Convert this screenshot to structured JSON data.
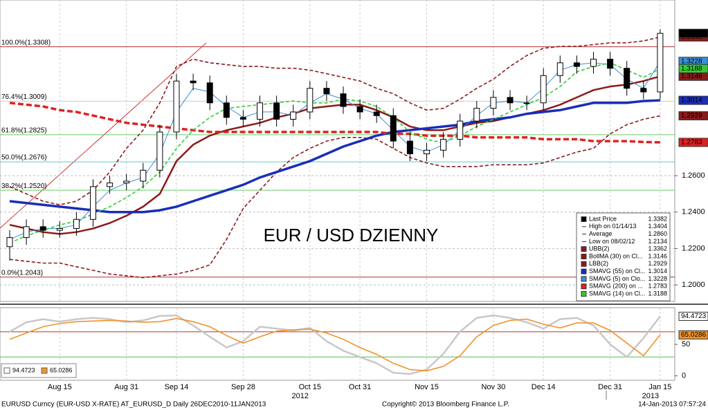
{
  "chart_data": [
    {
      "type": "candlestick",
      "title": "EUR / USD DZIENNY",
      "title_color": "#cc1111",
      "categories": [
        null,
        null,
        null,
        "Aug 15",
        null,
        null,
        null,
        "Aug 31",
        null,
        null,
        "Sep 14",
        null,
        null,
        null,
        "Sep 28",
        null,
        null,
        null,
        "Oct 15",
        null,
        null,
        "Oct 31",
        null,
        null,
        null,
        "Nov 15",
        null,
        null,
        null,
        "Nov 30",
        null,
        null,
        "Dec 14",
        null,
        null,
        null,
        "Dec 31",
        null,
        null,
        "Jan 15"
      ],
      "year_labels": [
        {
          "text": "2012",
          "category": "Oct 15"
        },
        {
          "text": "2013",
          "category": "Jan 15"
        }
      ],
      "ohlc": {
        "name": "Last Price",
        "up_color": "#ffffff",
        "down_color": "#000000",
        "open": [
          1.221,
          1.226,
          1.232,
          1.23,
          1.231,
          1.236,
          1.254,
          1.256,
          1.257,
          1.263,
          1.284,
          1.312,
          1.311,
          1.3,
          1.292,
          1.291,
          1.3,
          1.291,
          1.295,
          1.308,
          1.305,
          1.298,
          1.295,
          1.293,
          1.279,
          1.272,
          1.274,
          1.28,
          1.29,
          1.297,
          1.303,
          1.3,
          1.3,
          1.315,
          1.322,
          1.32,
          1.324,
          1.319,
          1.308,
          1.306
        ],
        "high": [
          1.23,
          1.236,
          1.236,
          1.235,
          1.24,
          1.258,
          1.26,
          1.261,
          1.267,
          1.288,
          1.316,
          1.316,
          1.315,
          1.304,
          1.296,
          1.304,
          1.304,
          1.299,
          1.312,
          1.312,
          1.309,
          1.302,
          1.299,
          1.297,
          1.283,
          1.278,
          1.284,
          1.294,
          1.301,
          1.307,
          1.307,
          1.304,
          1.319,
          1.326,
          1.326,
          1.328,
          1.328,
          1.323,
          1.312,
          1.3404
        ],
        "low": [
          1.2134,
          1.222,
          1.226,
          1.226,
          1.227,
          1.232,
          1.25,
          1.252,
          1.253,
          1.259,
          1.28,
          1.307,
          1.296,
          1.288,
          1.287,
          1.287,
          1.287,
          1.287,
          1.291,
          1.301,
          1.294,
          1.291,
          1.289,
          1.275,
          1.268,
          1.268,
          1.27,
          1.276,
          1.286,
          1.293,
          1.296,
          1.296,
          1.296,
          1.311,
          1.316,
          1.316,
          1.315,
          1.304,
          1.302,
          1.302
        ],
        "close": [
          1.226,
          1.232,
          1.23,
          1.231,
          1.236,
          1.254,
          1.256,
          1.257,
          1.263,
          1.284,
          1.312,
          1.311,
          1.3,
          1.292,
          1.291,
          1.3,
          1.291,
          1.295,
          1.308,
          1.305,
          1.298,
          1.295,
          1.293,
          1.279,
          1.272,
          1.274,
          1.28,
          1.29,
          1.297,
          1.303,
          1.3,
          1.3,
          1.315,
          1.322,
          1.32,
          1.324,
          1.319,
          1.308,
          1.306,
          1.3382
        ]
      },
      "stats": [
        {
          "name": "High on 01/14/13",
          "value": 1.3404
        },
        {
          "name": "Average",
          "value": 1.286,
          "label": "1.2860"
        },
        {
          "name": "Low on 08/02/12",
          "value": 1.2134
        }
      ],
      "series": [
        {
          "name": "UBB(2)",
          "color": "#8b1a1a",
          "style": "dashed",
          "values": [
            1.254,
            1.25,
            1.246,
            1.244,
            1.246,
            1.252,
            1.262,
            1.275,
            1.285,
            1.3,
            1.32,
            1.324,
            1.322,
            1.321,
            1.32,
            1.32,
            1.319,
            1.319,
            1.318,
            1.316,
            1.314,
            1.312,
            1.308,
            1.305,
            1.3,
            1.296,
            1.297,
            1.302,
            1.308,
            1.313,
            1.32,
            1.326,
            1.33,
            1.331,
            1.331,
            1.332,
            1.333,
            1.333,
            1.334,
            1.3362
          ]
        },
        {
          "name": "BollMA (30) on Cl...",
          "color": "#8b1a1a",
          "style": "solid",
          "values": [
            1.233,
            1.231,
            1.229,
            1.228,
            1.229,
            1.231,
            1.234,
            1.238,
            1.243,
            1.25,
            1.268,
            1.277,
            1.282,
            1.285,
            1.287,
            1.289,
            1.292,
            1.294,
            1.297,
            1.298,
            1.299,
            1.299,
            1.296,
            1.292,
            1.287,
            1.285,
            1.285,
            1.287,
            1.289,
            1.29,
            1.292,
            1.294,
            1.296,
            1.299,
            1.303,
            1.307,
            1.309,
            1.31,
            1.312,
            1.3146
          ]
        },
        {
          "name": "LBB(2)",
          "color": "#8b1a1a",
          "style": "dashed",
          "values": [
            1.214,
            1.213,
            1.212,
            1.212,
            1.21,
            1.208,
            1.206,
            1.205,
            1.204,
            1.205,
            1.206,
            1.208,
            1.211,
            1.225,
            1.242,
            1.252,
            1.262,
            1.27,
            1.275,
            1.279,
            1.281,
            1.281,
            1.28,
            1.275,
            1.27,
            1.267,
            1.265,
            1.265,
            1.265,
            1.266,
            1.266,
            1.266,
            1.267,
            1.27,
            1.273,
            1.275,
            1.283,
            1.288,
            1.291,
            1.2929
          ]
        },
        {
          "name": "SMAVG (55) on Cl...",
          "color": "#1a2db8",
          "style": "thick",
          "values": [
            1.246,
            1.245,
            1.244,
            1.243,
            1.242,
            1.241,
            1.24,
            1.24,
            1.24,
            1.241,
            1.243,
            1.246,
            1.249,
            1.252,
            1.255,
            1.259,
            1.262,
            1.265,
            1.268,
            1.272,
            1.276,
            1.279,
            1.282,
            1.284,
            1.285,
            1.286,
            1.287,
            1.288,
            1.29,
            1.291,
            1.292,
            1.294,
            1.295,
            1.296,
            1.298,
            1.3,
            1.3,
            1.3,
            1.301,
            1.3014
          ]
        },
        {
          "name": "SMAVG (5) on Clo...",
          "color": "#3a8fd8",
          "style": "thin",
          "values": [
            1.225,
            1.229,
            1.231,
            1.231,
            1.233,
            1.243,
            1.252,
            1.256,
            1.259,
            1.272,
            1.295,
            1.308,
            1.306,
            1.298,
            1.292,
            1.295,
            1.295,
            1.293,
            1.3,
            1.305,
            1.302,
            1.297,
            1.294,
            1.285,
            1.276,
            1.273,
            1.277,
            1.285,
            1.293,
            1.3,
            1.301,
            1.3,
            1.308,
            1.318,
            1.321,
            1.322,
            1.321,
            1.313,
            1.308,
            1.3228
          ]
        },
        {
          "name": "SMAVG (200) on ...",
          "color": "#e02020",
          "style": "thickdashed",
          "values": [
            1.3,
            1.299,
            1.298,
            1.296,
            1.295,
            1.293,
            1.291,
            1.289,
            1.288,
            1.287,
            1.286,
            1.285,
            1.284,
            1.284,
            1.284,
            1.284,
            1.284,
            1.284,
            1.284,
            1.284,
            1.284,
            1.284,
            1.284,
            1.283,
            1.283,
            1.282,
            1.282,
            1.282,
            1.281,
            1.281,
            1.281,
            1.281,
            1.28,
            1.28,
            1.28,
            1.279,
            1.279,
            1.279,
            1.2785,
            1.2783
          ]
        },
        {
          "name": "SMAVG (14) on Cl...",
          "color": "#33cc33",
          "style": "dashed",
          "values": [
            1.223,
            1.227,
            1.23,
            1.233,
            1.235,
            1.239,
            1.243,
            1.248,
            1.254,
            1.262,
            1.275,
            1.285,
            1.292,
            1.297,
            1.298,
            1.299,
            1.3,
            1.301,
            1.3,
            1.3,
            1.302,
            1.301,
            1.298,
            1.292,
            1.284,
            1.28,
            1.278,
            1.282,
            1.287,
            1.291,
            1.295,
            1.299,
            1.303,
            1.309,
            1.317,
            1.32,
            1.322,
            1.318,
            1.314,
            1.3188
          ]
        }
      ],
      "fib_levels": [
        {
          "label": "100.0%(1.3308)",
          "value": 1.3308,
          "color": "#b03030"
        },
        {
          "label": "76.4%(1.3009)",
          "value": 1.3009,
          "color": "#cccccc"
        },
        {
          "label": "61.8%(1.2825)",
          "value": 1.2825,
          "color": "#66cc66"
        },
        {
          "label": "50.0%(1.2676)",
          "value": 1.2676,
          "color": "#55cccc"
        },
        {
          "label": "38.2%(1.2520)",
          "value": 1.252,
          "color": "#66cc66"
        },
        {
          "label": "0.0%(1.2043)",
          "value": 1.2043,
          "color": "#b03030"
        }
      ],
      "ylim": [
        1.1913,
        1.3565
      ],
      "yticks": [
        {
          "value": 1.2,
          "label": "1.2000"
        },
        {
          "value": 1.22,
          "label": "1.2200"
        },
        {
          "value": 1.24,
          "label": "1.2400"
        },
        {
          "value": 1.26,
          "label": "1.2600"
        }
      ],
      "grid": true
    },
    {
      "type": "line",
      "series": [
        {
          "color": "#c8c8c8",
          "values": [
            70,
            85,
            90,
            86,
            90,
            92,
            90,
            85,
            88,
            95,
            96,
            80,
            62,
            45,
            55,
            78,
            75,
            72,
            76,
            55,
            40,
            30,
            20,
            5,
            3,
            10,
            35,
            70,
            92,
            96,
            92,
            85,
            75,
            90,
            92,
            80,
            50,
            30,
            60,
            94.4723
          ]
        },
        {
          "color": "#f0922a",
          "values": [
            58,
            68,
            78,
            83,
            86,
            87,
            88,
            87,
            85,
            86,
            91,
            86,
            78,
            64,
            52,
            62,
            71,
            73,
            74,
            68,
            58,
            45,
            34,
            20,
            10,
            8,
            15,
            32,
            62,
            80,
            88,
            90,
            82,
            76,
            84,
            84,
            72,
            52,
            32,
            65.0286
          ]
        }
      ],
      "levels": [
        {
          "value": 70,
          "color": "#b03030"
        },
        {
          "value": 30,
          "color": "#55bb55"
        }
      ],
      "ylim": [
        -7,
        106
      ],
      "yticks": [
        0,
        50
      ]
    }
  ],
  "footer": {
    "left": "EURUSD Curncy (EUR-USD X-RATE) AT_EURUSD_D  Daily 26DEC2010-11JAN2013",
    "center": "Copyright© 2013 Bloomberg Finance L.P.",
    "right": "14-Jan-2013 07:57:24"
  }
}
